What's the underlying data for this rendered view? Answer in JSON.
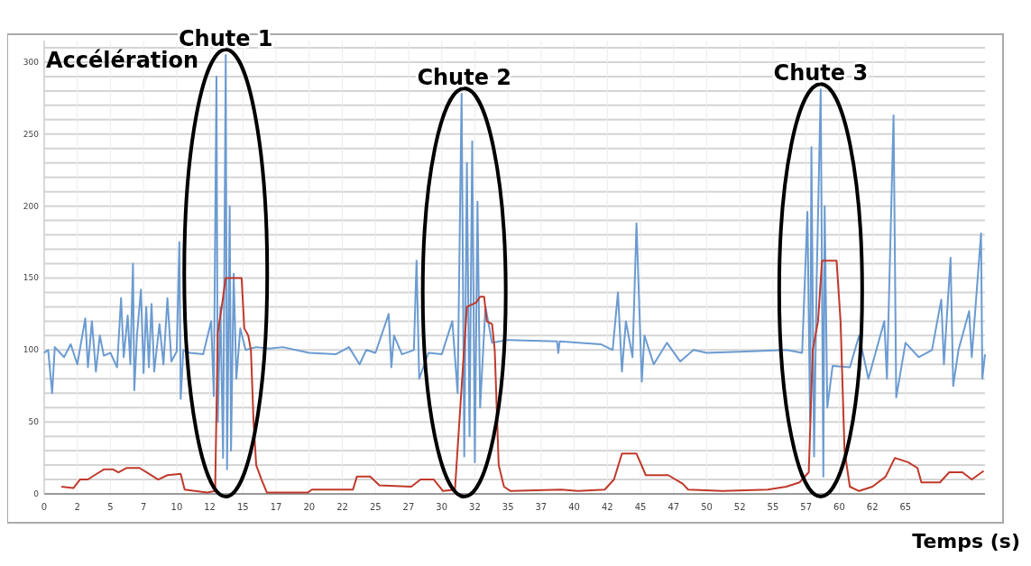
{
  "chart_data": {
    "type": "line",
    "ylabel": "Accélération",
    "xlabel": "Temps (s)",
    "annotations": [
      {
        "text": "Chute 1",
        "x": 13.7,
        "y": 305
      },
      {
        "text": "Chute 2",
        "x": 31.7,
        "y": 278
      },
      {
        "text": "Chute 3",
        "x": 58.6,
        "y": 281
      }
    ],
    "xlim": [
      0,
      71
    ],
    "ylim": [
      0,
      315
    ],
    "xticks": [
      0,
      {
        "value": 2.5,
        "label": "2"
      },
      5,
      {
        "value": 7.5,
        "label": "7"
      },
      10,
      {
        "value": 12.5,
        "label": "12"
      },
      15,
      {
        "value": 17.5,
        "label": "17"
      },
      20,
      {
        "value": 22.5,
        "label": "22"
      },
      25,
      {
        "value": 27.5,
        "label": "27"
      },
      30,
      {
        "value": 32.5,
        "label": "32"
      },
      35,
      {
        "value": 37.5,
        "label": "37"
      },
      40,
      {
        "value": 42.5,
        "label": "42"
      },
      45,
      {
        "value": 47.5,
        "label": "47"
      },
      50,
      {
        "value": 52.5,
        "label": "52"
      },
      55,
      {
        "value": 57.5,
        "label": "57"
      },
      60,
      {
        "value": 62.5,
        "label": "62"
      },
      65
    ],
    "yticks": [
      0,
      {
        "value": 10,
        "label": null
      },
      {
        "value": 20,
        "label": null
      },
      {
        "value": 30,
        "label": null
      },
      {
        "value": 40,
        "label": null
      },
      50,
      {
        "value": 60,
        "label": null
      },
      {
        "value": 70,
        "label": null
      },
      {
        "value": 80,
        "label": null
      },
      {
        "value": 90,
        "label": null
      },
      100,
      {
        "value": 110,
        "label": null
      },
      {
        "value": 120,
        "label": null
      },
      {
        "value": 130,
        "label": null
      },
      {
        "value": 140,
        "label": null
      },
      150,
      {
        "value": 160,
        "label": null
      },
      {
        "value": 170,
        "label": null
      },
      {
        "value": 180,
        "label": null
      },
      {
        "value": 190,
        "label": null
      },
      200,
      {
        "value": 210,
        "label": null
      },
      {
        "value": 220,
        "label": null
      },
      {
        "value": 230,
        "label": null
      },
      {
        "value": 240,
        "label": null
      },
      250,
      {
        "value": 260,
        "label": null
      },
      {
        "value": 270,
        "label": null
      },
      {
        "value": 280,
        "label": null
      },
      {
        "value": 290,
        "label": null
      },
      300,
      {
        "value": 310,
        "label": null
      }
    ],
    "grid": true,
    "marker": "none",
    "line_style": "solid",
    "series": [
      {
        "color": "#6b9bd1",
        "x": [
          0,
          0.3,
          0.6,
          0.8,
          1.5,
          2,
          2.5,
          3.1,
          3.3,
          3.6,
          3.9,
          4.2,
          4.5,
          5,
          5.5,
          5.8,
          6.0,
          6.3,
          6.5,
          6.7,
          6.8,
          7.0,
          7.3,
          7.5,
          7.7,
          7.9,
          8.1,
          8.3,
          8.7,
          9.0,
          9.3,
          9.6,
          10.0,
          10.2,
          10.3,
          10.5,
          11,
          12,
          12.6,
          12.8,
          13.0,
          13.1,
          13.3,
          13.5,
          13.7,
          13.8,
          14.0,
          14.1,
          14.3,
          14.5,
          14.8,
          15.2,
          16,
          17,
          18,
          20,
          22,
          23,
          23.8,
          24.3,
          25,
          26.0,
          26.2,
          26.4,
          27,
          27.9,
          28.1,
          28.3,
          29,
          30,
          30.8,
          31.2,
          31.5,
          31.7,
          31.9,
          32.1,
          32.3,
          32.5,
          32.7,
          32.9,
          33.3,
          33.8,
          35,
          38.7,
          38.8,
          38.9,
          42,
          42.9,
          43.3,
          43.6,
          43.9,
          44.4,
          44.7,
          45.1,
          45.3,
          46,
          47,
          48,
          49,
          50,
          53,
          56,
          57.2,
          57.6,
          57.8,
          57.9,
          58.1,
          58.3,
          58.6,
          58.8,
          58.9,
          59.1,
          59.5,
          60.8,
          61.5,
          62.2,
          62.8,
          63.4,
          63.6,
          64.1,
          64.3,
          65,
          66,
          67,
          67.7,
          67.9,
          68.4,
          68.6,
          69,
          69.8,
          70.0,
          70.7,
          70.8,
          71
        ],
        "values": [
          98,
          100,
          70,
          102,
          95,
          104,
          90,
          122,
          88,
          120,
          85,
          110,
          96,
          98,
          88,
          136,
          95,
          124,
          90,
          160,
          72,
          110,
          142,
          84,
          130,
          88,
          132,
          85,
          118,
          90,
          136,
          92,
          99,
          175,
          66,
          100,
          98,
          97,
          120,
          68,
          290,
          50,
          130,
          25,
          305,
          17,
          200,
          30,
          153,
          80,
          115,
          100,
          102,
          101,
          102,
          98,
          97,
          102,
          90,
          100,
          98,
          125,
          88,
          110,
          97,
          100,
          162,
          80,
          98,
          97,
          120,
          70,
          278,
          26,
          230,
          40,
          245,
          22,
          203,
          60,
          130,
          105,
          107,
          106,
          98,
          106,
          104,
          100,
          140,
          85,
          120,
          95,
          188,
          78,
          110,
          90,
          105,
          92,
          100,
          98,
          99,
          100,
          98,
          196,
          50,
          241,
          26,
          150,
          281,
          12,
          200,
          60,
          89,
          88,
          110,
          80,
          100,
          120,
          80,
          263,
          67,
          105,
          95,
          100,
          135,
          90,
          164,
          75,
          100,
          127,
          95,
          181,
          80,
          97
        ]
      },
      {
        "color": "#c0392b",
        "x": [
          1.3,
          2.2,
          2.7,
          3.3,
          3.8,
          4.5,
          5.2,
          5.6,
          6.2,
          7.2,
          7.9,
          8.6,
          9.3,
          10.3,
          10.6,
          12.3,
          12.9,
          13.1,
          13.4,
          13.7,
          14.9,
          15.1,
          15.4,
          15.6,
          15.8,
          16,
          16.4,
          16.8,
          19.9,
          20.2,
          23.3,
          23.6,
          24.6,
          25.3,
          27.7,
          28.4,
          29.4,
          30.1,
          31.0,
          31.4,
          31.9,
          32.6,
          32.9,
          33.2,
          33.4,
          33.8,
          34,
          34.3,
          34.7,
          35.2,
          39,
          40.3,
          42.3,
          43,
          43.6,
          44.7,
          45.4,
          47.1,
          48.2,
          48.6,
          51.2,
          54.6,
          56,
          57,
          57.7,
          58,
          58.4,
          58.7,
          59.8,
          60.1,
          60.4,
          60.8,
          61.5,
          62.5,
          63.5,
          64.2,
          65.2,
          65.9,
          66.2,
          67.6,
          68.3,
          69.3,
          70,
          70.9
        ],
        "values": [
          5,
          4,
          10,
          10,
          13,
          17,
          17,
          15,
          18,
          18,
          14,
          10,
          13,
          14,
          3,
          1,
          2,
          112,
          130,
          150,
          150,
          115,
          110,
          100,
          50,
          20,
          10,
          1,
          1,
          3,
          3,
          12,
          12,
          6,
          5,
          10,
          10,
          2,
          3,
          60,
          130,
          133,
          137,
          137,
          120,
          118,
          100,
          20,
          5,
          2,
          3,
          2,
          3,
          10,
          28,
          28,
          13,
          13,
          7,
          3,
          2,
          3,
          5,
          8,
          15,
          100,
          120,
          162,
          162,
          120,
          30,
          5,
          2,
          5,
          12,
          25,
          22,
          18,
          8,
          8,
          15,
          15,
          10,
          16
        ]
      }
    ]
  }
}
